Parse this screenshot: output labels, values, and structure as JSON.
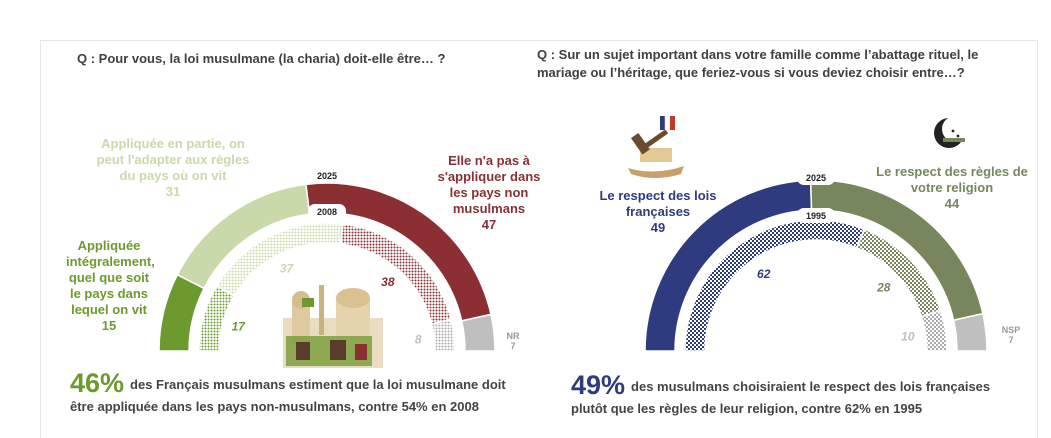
{
  "colors": {
    "red": "#8b2f33",
    "lightgreen": "#c9d9a9",
    "darkgreen": "#6d9a2e",
    "grey": "#bfbfbf",
    "navy": "#2e3b7e",
    "olive": "#78865e",
    "text": "#444444"
  },
  "left": {
    "question": "Q : Pour vous, la loi musulmane (la charia) doit-elle être… ?",
    "year_outer": "2025",
    "year_inner": "2008",
    "summary_big": "46%",
    "summary_line1": "des Français musulmans estiment que la loi musulmane doit",
    "summary_line2": "être appliquée dans les pays non-musulmans, contre 54% en 2008"
  },
  "right": {
    "question": "Q : Sur un sujet important dans votre famille comme l’abattage rituel, le mariage ou l’héritage, que feriez-vous si vous deviez choisir entre…?",
    "year_outer": "2025",
    "year_inner": "1995",
    "summary_big": "49%",
    "summary_line1": "des musulmans choisiraient le respect des lois françaises",
    "summary_line2": "plutôt que les règles de leur religion, contre 62% en 1995"
  },
  "chart_data": [
    {
      "type": "pie",
      "subtype": "nested-semicircle",
      "title": "Q : Pour vous, la loi musulmane (la charia) doit-elle être… ?",
      "categories": [
        "Appliquée intégralement, quel que soit le pays dans lequel on vit",
        "Appliquée en partie, on peut l'adapter aux règles du pays où on vit",
        "Elle n'a pas à s'appliquer dans les pays non musulmans",
        "NR"
      ],
      "series": [
        {
          "name": "2025",
          "values": [
            15,
            31,
            47,
            7
          ]
        },
        {
          "name": "2008",
          "values": [
            17,
            37,
            38,
            8
          ]
        }
      ]
    },
    {
      "type": "pie",
      "subtype": "nested-semicircle",
      "title": "Q : Sur un sujet important dans votre famille comme l’abattage rituel, le mariage ou l’héritage, que feriez-vous si vous deviez choisir entre…?",
      "categories": [
        "Le respect des lois françaises",
        "Le respect des règles de votre religion",
        "NSP"
      ],
      "series": [
        {
          "name": "2025",
          "values": [
            49,
            44,
            7
          ]
        },
        {
          "name": "1995",
          "values": [
            62,
            28,
            10
          ]
        }
      ]
    }
  ]
}
